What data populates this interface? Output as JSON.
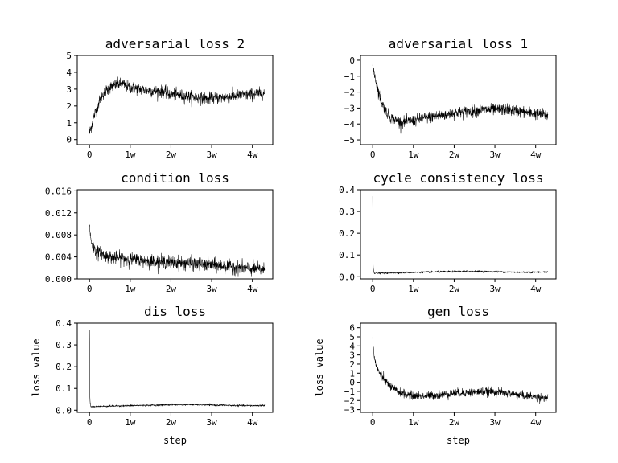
{
  "chart_data": [
    {
      "type": "line",
      "title": "adversarial loss 2",
      "xlabel": "",
      "ylabel": "",
      "xlim": [
        -3000,
        45000
      ],
      "ylim": [
        -0.3,
        5
      ],
      "xticks": [
        0,
        10000,
        20000,
        30000,
        40000
      ],
      "xtick_labels": [
        "0",
        "1w",
        "2w",
        "3w",
        "4w"
      ],
      "yticks": [
        0,
        1,
        2,
        3,
        4,
        5
      ],
      "ytick_labels": [
        "0",
        "1",
        "2",
        "3",
        "4",
        "5"
      ],
      "grid": false,
      "series": [
        {
          "color": "#000000",
          "x": [
            0,
            500,
            1000,
            2000,
            3000,
            4000,
            5000,
            6000,
            7000,
            8000,
            10000,
            12000,
            15000,
            18000,
            20000,
            23000,
            26000,
            28000,
            30000,
            33000,
            36000,
            40000,
            43000
          ],
          "y": [
            0.4,
            0.8,
            1.3,
            2.0,
            2.6,
            2.9,
            3.1,
            3.2,
            3.3,
            3.3,
            3.1,
            3.0,
            2.9,
            2.85,
            2.7,
            2.6,
            2.5,
            2.45,
            2.45,
            2.5,
            2.6,
            2.7,
            2.75
          ],
          "noise": 0.35
        }
      ]
    },
    {
      "type": "line",
      "title": "adversarial loss 1",
      "xlabel": "",
      "ylabel": "",
      "xlim": [
        -3000,
        45000
      ],
      "ylim": [
        -5.3,
        0.3
      ],
      "xticks": [
        0,
        10000,
        20000,
        30000,
        40000
      ],
      "xtick_labels": [
        "0",
        "1w",
        "2w",
        "3w",
        "4w"
      ],
      "yticks": [
        0,
        -1,
        -2,
        -3,
        -4,
        -5
      ],
      "ytick_labels": [
        "0",
        "−1",
        "−2",
        "−3",
        "−4",
        "−5"
      ],
      "grid": false,
      "series": [
        {
          "color": "#000000",
          "x": [
            0,
            500,
            1000,
            2000,
            3000,
            4000,
            5000,
            7000,
            10000,
            13000,
            16000,
            20000,
            24000,
            28000,
            30000,
            33000,
            36000,
            40000,
            43000
          ],
          "y": [
            -0.4,
            -0.9,
            -1.6,
            -2.5,
            -3.1,
            -3.5,
            -3.7,
            -3.9,
            -3.8,
            -3.6,
            -3.5,
            -3.3,
            -3.2,
            -3.1,
            -3.1,
            -3.1,
            -3.2,
            -3.35,
            -3.45
          ],
          "noise": 0.35
        }
      ]
    },
    {
      "type": "line",
      "title": "condition loss",
      "xlabel": "",
      "ylabel": "",
      "xlim": [
        -3000,
        45000
      ],
      "ylim": [
        0,
        0.0162
      ],
      "xticks": [
        0,
        10000,
        20000,
        30000,
        40000
      ],
      "xtick_labels": [
        "0",
        "1w",
        "2w",
        "3w",
        "4w"
      ],
      "yticks": [
        0,
        0.004,
        0.008,
        0.012,
        0.016
      ],
      "ytick_labels": [
        "0.000",
        "0.004",
        "0.008",
        "0.012",
        "0.016"
      ],
      "grid": false,
      "series": [
        {
          "color": "#000000",
          "x": [
            0,
            300,
            800,
            1500,
            3000,
            5000,
            8000,
            12000,
            16000,
            20000,
            25000,
            30000,
            35000,
            40000,
            43000
          ],
          "y": [
            0.0095,
            0.0075,
            0.006,
            0.005,
            0.0045,
            0.004,
            0.0037,
            0.0034,
            0.0032,
            0.003,
            0.0028,
            0.0025,
            0.0022,
            0.0018,
            0.0016
          ],
          "noise": 0.0012
        }
      ]
    },
    {
      "type": "line",
      "title": "cycle consistency loss",
      "xlabel": "",
      "ylabel": "",
      "xlim": [
        -3000,
        45000
      ],
      "ylim": [
        -0.01,
        0.4
      ],
      "xticks": [
        0,
        10000,
        20000,
        30000,
        40000
      ],
      "xtick_labels": [
        "0",
        "1w",
        "2w",
        "3w",
        "4w"
      ],
      "yticks": [
        0,
        0.1,
        0.2,
        0.3,
        0.4
      ],
      "ytick_labels": [
        "0.0",
        "0.1",
        "0.2",
        "0.3",
        "0.4"
      ],
      "grid": false,
      "series": [
        {
          "color": "#000000",
          "x": [
            0,
            100,
            300,
            1000,
            5000,
            10000,
            15000,
            20000,
            25000,
            30000,
            35000,
            40000,
            43000
          ],
          "y": [
            0.37,
            0.05,
            0.018,
            0.016,
            0.018,
            0.02,
            0.022,
            0.024,
            0.025,
            0.023,
            0.021,
            0.021,
            0.022
          ],
          "noise": 0.004
        }
      ]
    },
    {
      "type": "line",
      "title": "dis loss",
      "xlabel": "step",
      "ylabel": "loss value",
      "xlim": [
        -3000,
        45000
      ],
      "ylim": [
        -0.01,
        0.4
      ],
      "xticks": [
        0,
        10000,
        20000,
        30000,
        40000
      ],
      "xtick_labels": [
        "0",
        "1w",
        "2w",
        "3w",
        "4w"
      ],
      "yticks": [
        0,
        0.1,
        0.2,
        0.3,
        0.4
      ],
      "ytick_labels": [
        "0.0",
        "0.1",
        "0.2",
        "0.3",
        "0.4"
      ],
      "grid": false,
      "series": [
        {
          "color": "#000000",
          "x": [
            0,
            100,
            300,
            1000,
            5000,
            10000,
            15000,
            20000,
            25000,
            30000,
            35000,
            40000,
            43000
          ],
          "y": [
            0.37,
            0.05,
            0.018,
            0.016,
            0.019,
            0.021,
            0.023,
            0.025,
            0.026,
            0.024,
            0.022,
            0.021,
            0.022
          ],
          "noise": 0.004
        }
      ]
    },
    {
      "type": "line",
      "title": "gen loss",
      "xlabel": "step",
      "ylabel": "loss value",
      "xlim": [
        -3000,
        45000
      ],
      "ylim": [
        -3.3,
        6.5
      ],
      "xticks": [
        0,
        10000,
        20000,
        30000,
        40000
      ],
      "xtick_labels": [
        "0",
        "1w",
        "2w",
        "3w",
        "4w"
      ],
      "yticks": [
        6,
        5,
        4,
        3,
        2,
        1,
        0,
        -1,
        -2,
        -3
      ],
      "ytick_labels": [
        "6",
        "5",
        "4",
        "3",
        "2",
        "1",
        "0",
        "−1",
        "−2",
        "−3"
      ],
      "grid": false,
      "series": [
        {
          "color": "#000000",
          "x": [
            0,
            200,
            500,
            1000,
            2000,
            3000,
            4000,
            5000,
            7000,
            10000,
            13000,
            16000,
            20000,
            24000,
            28000,
            30000,
            33000,
            36000,
            40000,
            43000
          ],
          "y": [
            5.0,
            3.5,
            2.5,
            1.6,
            0.8,
            0.2,
            -0.3,
            -0.7,
            -1.2,
            -1.5,
            -1.5,
            -1.4,
            -1.2,
            -1.1,
            -1.0,
            -1.05,
            -1.2,
            -1.4,
            -1.6,
            -1.75
          ],
          "noise": 0.45
        }
      ]
    }
  ]
}
